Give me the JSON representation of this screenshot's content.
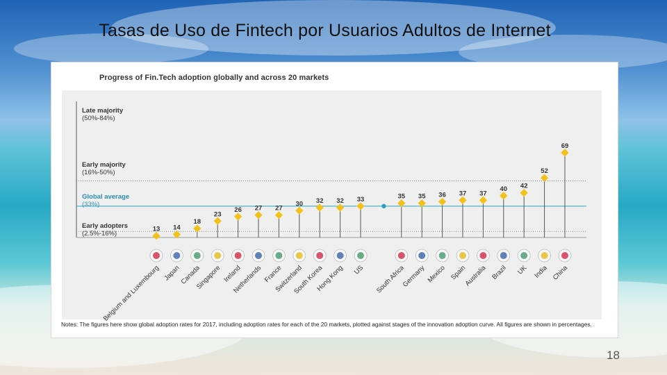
{
  "slide": {
    "title": "Tasas  de  Uso  de  Fintech  por  Usuarios  Adultos de  Internet",
    "page_number": "18"
  },
  "figure": {
    "notes": "Notes: The figures here show global adoption rates for 2017, including adoption rates for each of the 20 markets, plotted against stages of the innovation adoption curve. All figures are shown in percentages."
  },
  "colors": {
    "marker": "#f2c21a",
    "global_line": "#2aa3b8",
    "global_label": "#2a8fb0",
    "plot_bg": "#efefef",
    "stem": "#555555"
  },
  "chart_data": {
    "type": "scatter",
    "title": "Progress of Fin.Tech adoption globally and across 20 markets",
    "categories": [
      "Belgium and Luxembourg",
      "Japan",
      "Canada",
      "Singapore",
      "Ireland",
      "Netherlands",
      "France",
      "Switzerland",
      "South Korea",
      "Hong Kong",
      "US",
      "",
      "South Africa",
      "Germany",
      "Mexico",
      "Spain",
      "Australia",
      "Brazil",
      "UK",
      "India",
      "China"
    ],
    "values": [
      13,
      14,
      18,
      23,
      26,
      27,
      27,
      30,
      32,
      32,
      33,
      null,
      35,
      35,
      36,
      37,
      37,
      40,
      42,
      52,
      69
    ],
    "global_average": 33,
    "stages": [
      {
        "label": "Late majority",
        "range": "(50%-84%)",
        "threshold": 50
      },
      {
        "label": "Early majority",
        "range": "(16%-50%)",
        "threshold": 16
      },
      {
        "label": "Global average",
        "range": "(33%)",
        "value": 33
      },
      {
        "label": "Early adopters",
        "range": "(2.5%-16%)"
      }
    ],
    "ylim": [
      0,
      84
    ],
    "grid": false,
    "xlabel": "",
    "ylabel": ""
  }
}
